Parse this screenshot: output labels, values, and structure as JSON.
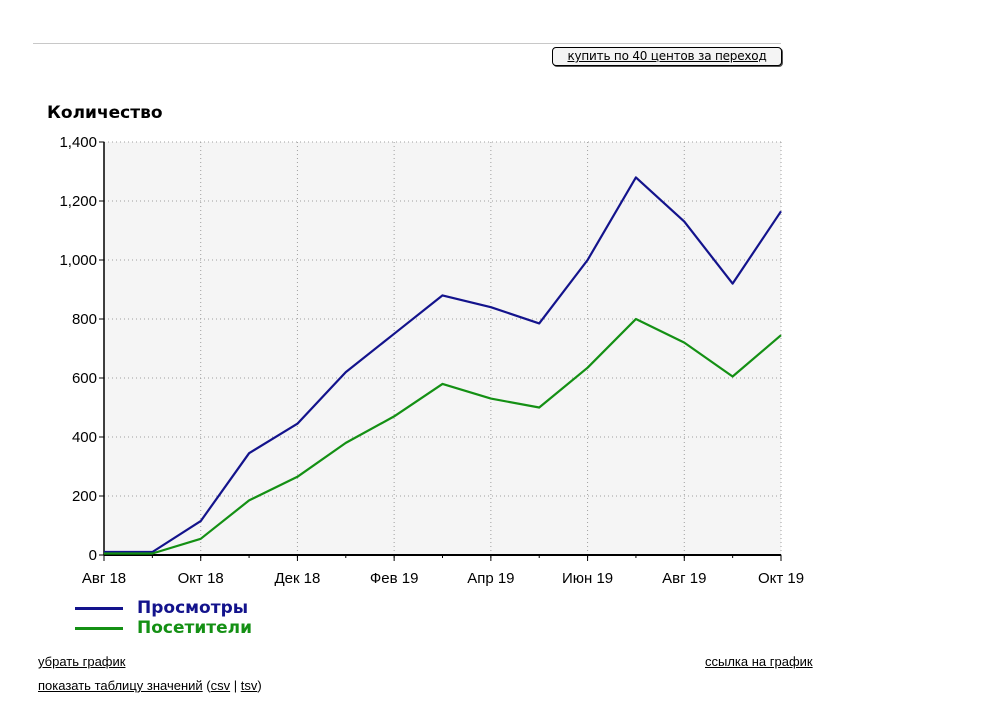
{
  "buy_button": "купить по 40 центов за переход",
  "links": {
    "remove_chart": "убрать график",
    "chart_link": "ссылка на график",
    "show_table": "показать таблицу значений",
    "open_paren": " (",
    "csv": "csv",
    "separator": " | ",
    "tsv": "tsv",
    "close_paren": ")"
  },
  "chart_data": {
    "type": "line",
    "title": "",
    "ylabel": "Количество",
    "xlabel": "",
    "x": [
      "2018-08",
      "2018-09",
      "2018-10",
      "2018-11",
      "2018-12",
      "2019-01",
      "2019-02",
      "2019-03",
      "2019-04",
      "2019-05",
      "2019-06",
      "2019-07",
      "2019-08",
      "2019-09",
      "2019-10"
    ],
    "x_tick_labels": [
      "Авг 18",
      "Окт 18",
      "Дек 18",
      "Фев 19",
      "Апр 19",
      "Июн 19",
      "Авг 19",
      "Окт 19"
    ],
    "ylim": [
      0,
      1400
    ],
    "y_ticks": [
      "0",
      "200",
      "400",
      "600",
      "800",
      "1,000",
      "1,200",
      "1,400"
    ],
    "grid": true,
    "legend_position": "bottom-left",
    "series": [
      {
        "name": "Просмотры",
        "color": "#13138c",
        "values": [
          10,
          10,
          115,
          345,
          445,
          620,
          750,
          880,
          840,
          785,
          1000,
          1280,
          1130,
          920,
          1165
        ]
      },
      {
        "name": "Посетители",
        "color": "#149014",
        "values": [
          5,
          5,
          55,
          185,
          265,
          380,
          470,
          580,
          530,
          500,
          635,
          800,
          720,
          605,
          745
        ]
      }
    ]
  }
}
